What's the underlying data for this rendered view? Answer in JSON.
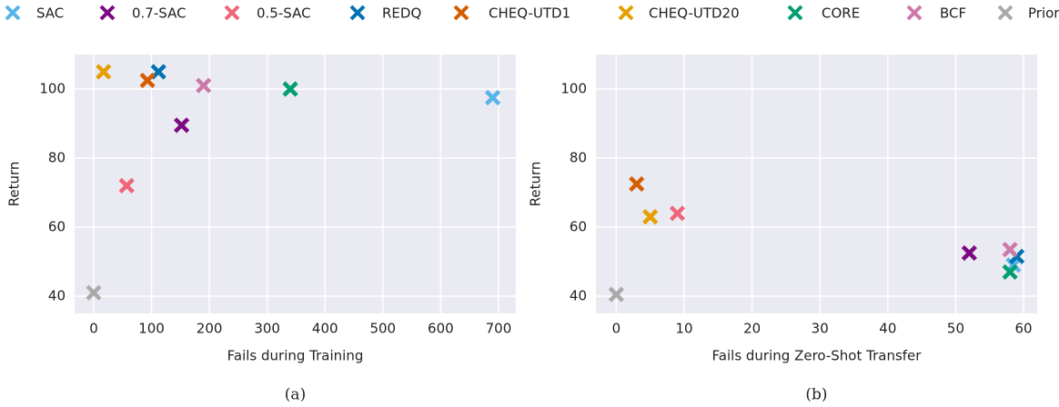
{
  "legend": {
    "series": [
      {
        "name": "SAC",
        "color": "#56b4e9"
      },
      {
        "name": "0.7-SAC",
        "color": "#7b0a82"
      },
      {
        "name": "0.5-SAC",
        "color": "#ee6677"
      },
      {
        "name": "REDQ",
        "color": "#0072b2"
      },
      {
        "name": "CHEQ-UTD1",
        "color": "#d55e00"
      },
      {
        "name": "CHEQ-UTD20",
        "color": "#e69f00"
      },
      {
        "name": "CORE",
        "color": "#009e73"
      },
      {
        "name": "BCF",
        "color": "#cc79a7"
      },
      {
        "name": "Prior",
        "color": "#aaaaaa"
      }
    ]
  },
  "chart_data": [
    {
      "type": "scatter",
      "xlabel": "Fails during Training",
      "ylabel": "Return",
      "caption": "(a)",
      "x": [
        690,
        152,
        57,
        112,
        93,
        17,
        340,
        190,
        0
      ],
      "y": [
        97.5,
        89.5,
        72,
        105,
        102.5,
        105,
        100,
        101,
        41
      ],
      "xlim": [
        -33,
        730
      ],
      "ylim": [
        35,
        110
      ],
      "xticks": [
        0,
        100,
        200,
        300,
        400,
        500,
        600,
        700
      ],
      "yticks": [
        40,
        60,
        80,
        100
      ],
      "grid": true
    },
    {
      "type": "scatter",
      "xlabel": "Fails during Zero-Shot Transfer",
      "ylabel": "Return",
      "caption": "(b)",
      "x": [
        58.5,
        52,
        9,
        59,
        3,
        5,
        58,
        58,
        0
      ],
      "y": [
        49,
        52.5,
        64,
        51.5,
        72.5,
        63,
        47,
        53.5,
        40.5
      ],
      "xlim": [
        -3,
        62
      ],
      "ylim": [
        35,
        110
      ],
      "xticks": [
        0,
        10,
        20,
        30,
        40,
        50,
        60
      ],
      "yticks": [
        40,
        60,
        80,
        100
      ],
      "grid": true
    }
  ]
}
